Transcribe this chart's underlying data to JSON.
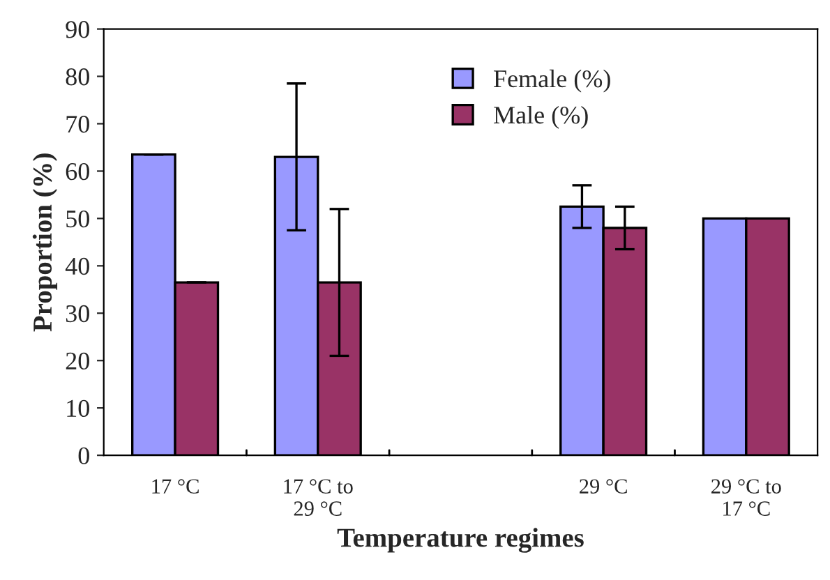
{
  "chart_data": {
    "type": "bar",
    "xlabel": "Temperature regimes",
    "ylabel": "Proportion (%)",
    "categories": [
      "17 °C",
      "17 °C to\n29 °C",
      null,
      "29 °C",
      "29 °C to\n17 °C"
    ],
    "series": [
      {
        "name": "Female (%)",
        "color": "#9999ff",
        "values": [
          63.5,
          63,
          null,
          52.5,
          50
        ],
        "errors": [
          0,
          15.5,
          null,
          4.5,
          null
        ]
      },
      {
        "name": "Male (%)",
        "color": "#993366",
        "values": [
          36.5,
          36.5,
          null,
          48,
          50
        ],
        "errors": [
          0,
          15.5,
          null,
          4.5,
          null
        ]
      }
    ],
    "ylim": [
      0,
      90
    ],
    "yticks": [
      0,
      10,
      20,
      30,
      40,
      50,
      60,
      70,
      80,
      90
    ],
    "grid": false,
    "legend": "top"
  }
}
